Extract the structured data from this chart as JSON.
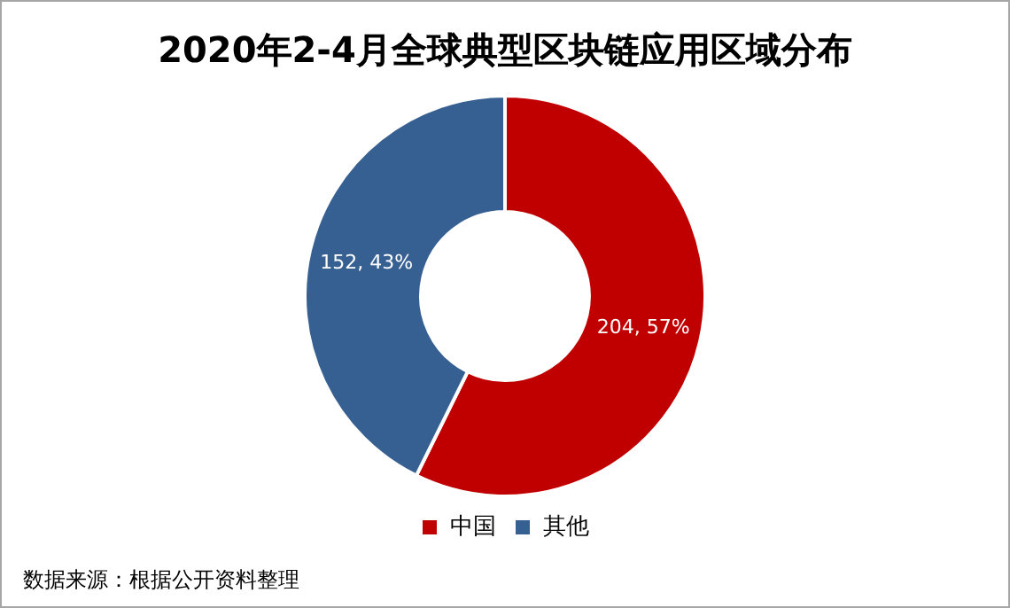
{
  "chart_data": {
    "type": "donut",
    "title": "2020年2-4月全球典型区块链应用区域分布",
    "categories": [
      "中国",
      "其他"
    ],
    "values": [
      204,
      152
    ],
    "colors": [
      "#c00000",
      "#376092"
    ],
    "value_labels": [
      "204, 57%",
      "152, 43%"
    ],
    "legend": "bottom",
    "annotations": [
      "数据来源：根据公开资料整理"
    ]
  }
}
